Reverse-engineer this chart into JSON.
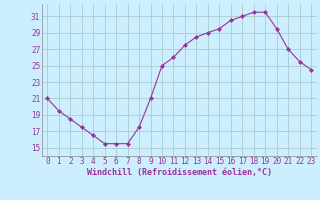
{
  "x": [
    0,
    1,
    2,
    3,
    4,
    5,
    6,
    7,
    8,
    9,
    10,
    11,
    12,
    13,
    14,
    15,
    16,
    17,
    18,
    19,
    20,
    21,
    22,
    23
  ],
  "y": [
    21,
    19.5,
    18.5,
    17.5,
    16.5,
    15.5,
    15.5,
    15.5,
    17.5,
    21,
    25,
    26,
    27.5,
    28.5,
    29,
    29.5,
    30.5,
    31,
    31.5,
    31.5,
    29.5,
    27,
    25.5,
    24.5
  ],
  "line_color": "#993399",
  "marker": "D",
  "marker_size": 2,
  "bg_color": "#cceeff",
  "grid_color": "#aacccc",
  "axis_color": "#333333",
  "tick_color": "#993399",
  "xlabel": "Windchill (Refroidissement éolien,°C)",
  "xlabel_fontsize": 6,
  "tick_fontsize": 5.5,
  "xlim": [
    -0.5,
    23.5
  ],
  "ylim": [
    14,
    32.5
  ],
  "yticks": [
    15,
    17,
    19,
    21,
    23,
    25,
    27,
    29,
    31
  ],
  "xticks": [
    0,
    1,
    2,
    3,
    4,
    5,
    6,
    7,
    8,
    9,
    10,
    11,
    12,
    13,
    14,
    15,
    16,
    17,
    18,
    19,
    20,
    21,
    22,
    23
  ]
}
